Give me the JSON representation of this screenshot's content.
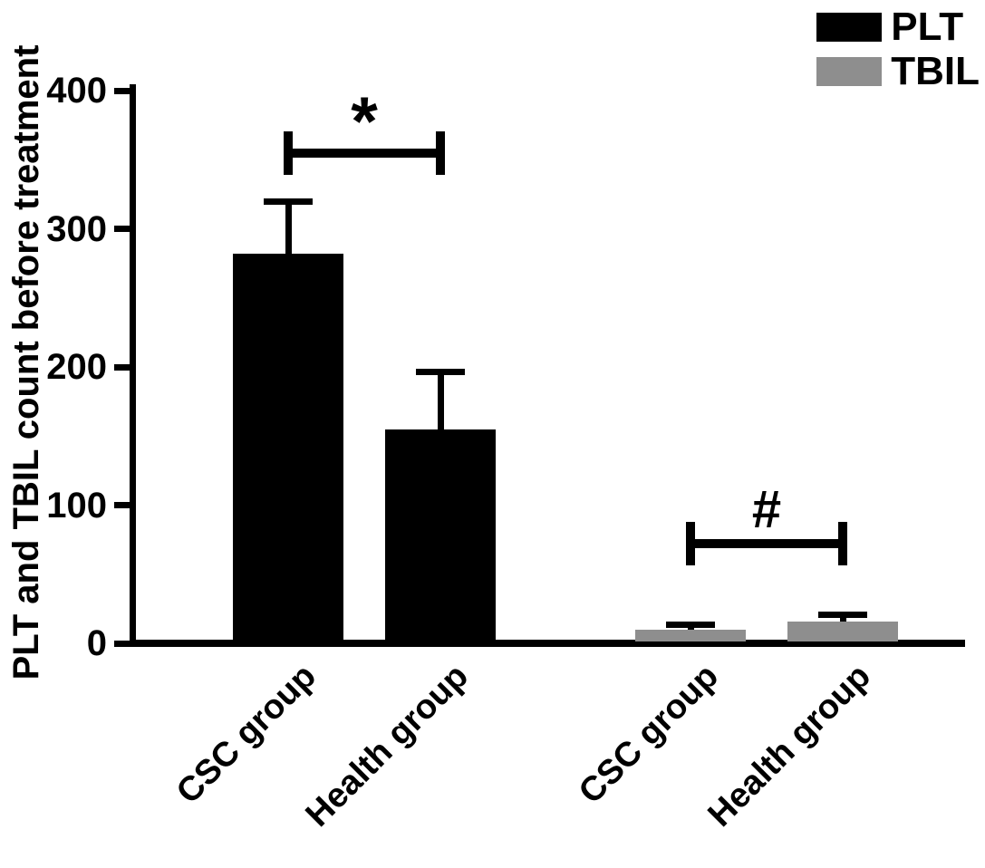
{
  "chart_data": {
    "type": "bar",
    "title": "",
    "ylabel": "PLT and TBIL count before treatment",
    "xlabel": "",
    "ylim": [
      0,
      400
    ],
    "yticks": [
      0,
      100,
      200,
      300,
      400
    ],
    "grid": false,
    "legend": {
      "position": "top-right",
      "items": [
        {
          "label": "PLT",
          "color": "#000000"
        },
        {
          "label": "TBIL",
          "color": "#8e8e8e"
        }
      ]
    },
    "categories": [
      "CSC group",
      "Health group",
      "CSC group",
      "Health group"
    ],
    "series": [
      {
        "name": "PLT",
        "color": "#000000",
        "bars": [
          {
            "category": "CSC group",
            "value": 282,
            "error": 38
          },
          {
            "category": "Health group",
            "value": 155,
            "error": 42
          }
        ]
      },
      {
        "name": "TBIL",
        "color": "#8e8e8e",
        "bars": [
          {
            "category": "CSC group",
            "value": 10,
            "error": 4
          },
          {
            "category": "Health group",
            "value": 16,
            "error": 5
          }
        ]
      }
    ],
    "annotations": [
      {
        "symbol": "*",
        "bar_indices": [
          0,
          1
        ],
        "y_value": 355
      },
      {
        "symbol": "#",
        "bar_indices": [
          2,
          3
        ],
        "y_value": 72
      }
    ]
  }
}
